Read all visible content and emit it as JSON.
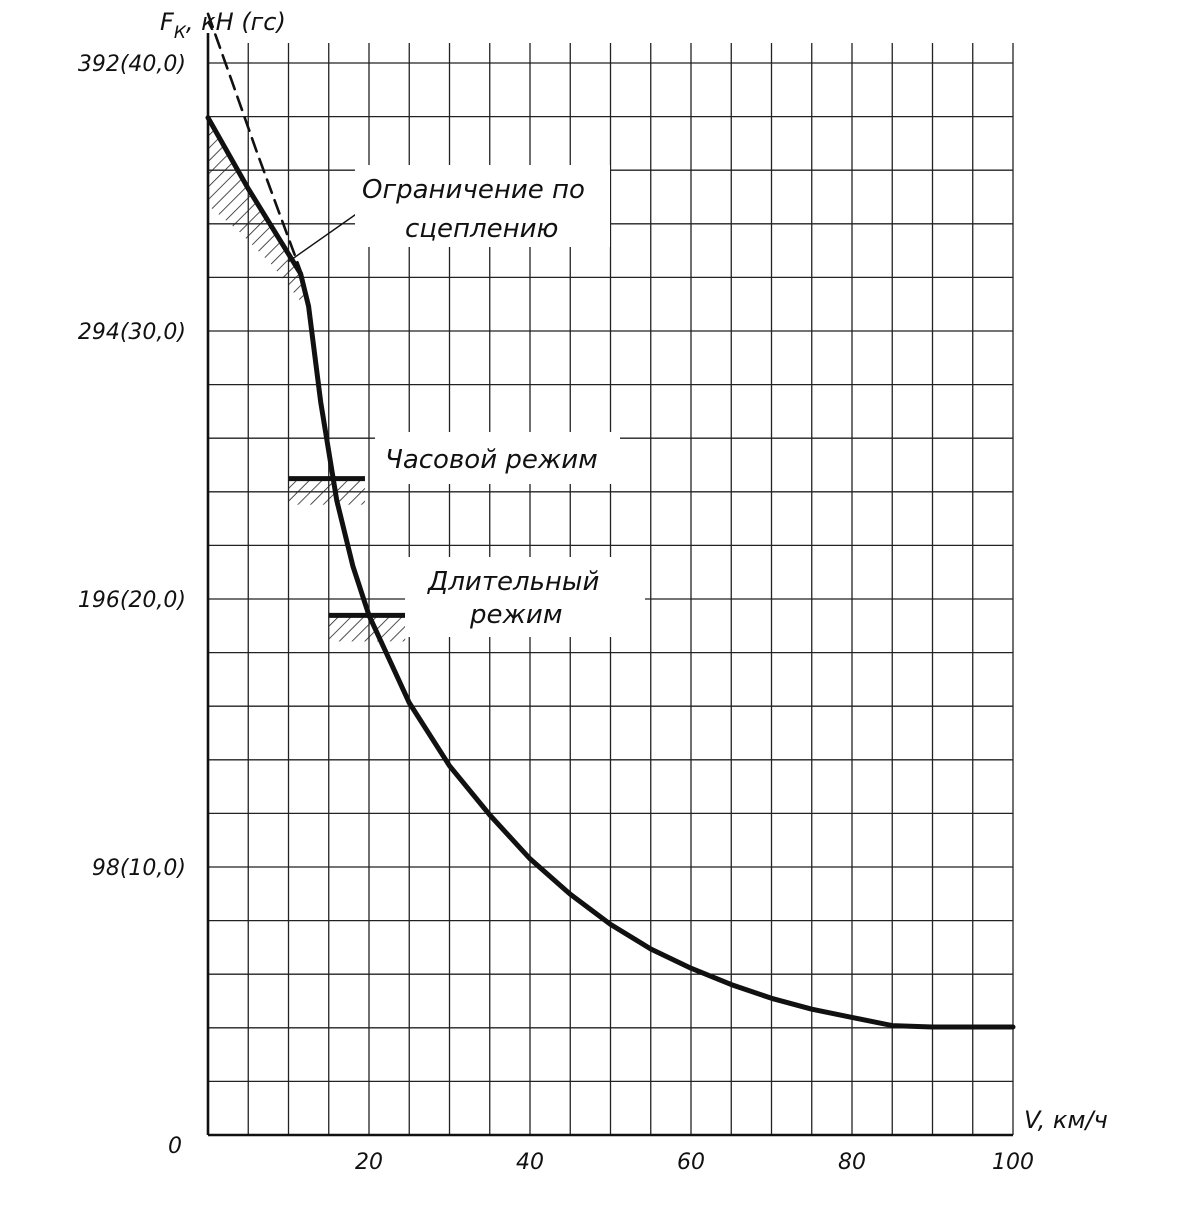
{
  "chart_data": {
    "type": "line",
    "y_axis_title": "F",
    "y_axis_title_sub": "К",
    "y_axis_unit": ", кН (гс)",
    "x_axis_title": "V, км/ч",
    "origin_label": "0",
    "x_ticks": [
      {
        "value": 20,
        "label": "20"
      },
      {
        "value": 40,
        "label": "40"
      },
      {
        "value": 60,
        "label": "60"
      },
      {
        "value": 80,
        "label": "80"
      },
      {
        "value": 100,
        "label": "100"
      }
    ],
    "y_ticks": [
      {
        "value": 98,
        "label": "98(10,0)"
      },
      {
        "value": 196,
        "label": "196(20,0)"
      },
      {
        "value": 294,
        "label": "294(30,0)"
      },
      {
        "value": 392,
        "label": "392(40,0)"
      }
    ],
    "xlim": [
      0,
      100
    ],
    "ylim": [
      0,
      392
    ],
    "grid": true,
    "series": [
      {
        "role": "traction-curve",
        "x": [
          0,
          5,
          11.5,
          12.5,
          14,
          16,
          18,
          20,
          25,
          30,
          35,
          40,
          45,
          50,
          55,
          60,
          65,
          70,
          75,
          80,
          85,
          90,
          100
        ],
        "y": [
          372,
          346,
          315,
          303,
          268,
          232,
          208,
          190,
          158,
          135,
          117,
          101,
          88,
          77,
          68,
          61,
          55,
          50,
          46,
          43,
          40,
          39.5,
          39.5
        ]
      },
      {
        "role": "adhesion-limit",
        "style": "dashed",
        "x": [
          0,
          3,
          6,
          9,
          11.5
        ],
        "y": [
          410,
          385,
          360,
          336,
          316
        ]
      }
    ],
    "marks": [
      {
        "role": "hourly-rating",
        "x_from": 10,
        "x_to": 19.5,
        "y": 240
      },
      {
        "role": "continuous-rating",
        "x_from": 15,
        "x_to": 24.5,
        "y": 190
      }
    ],
    "annotations": {
      "adhesion_line1": "Ограничение по",
      "adhesion_line2": "сцеплению",
      "hourly": "Часовой режим",
      "continuous_line1": "Длительный",
      "continuous_line2": "режим"
    },
    "colors": {
      "curve": "#111111",
      "grid": "#222222",
      "background": "#ffffff"
    }
  }
}
